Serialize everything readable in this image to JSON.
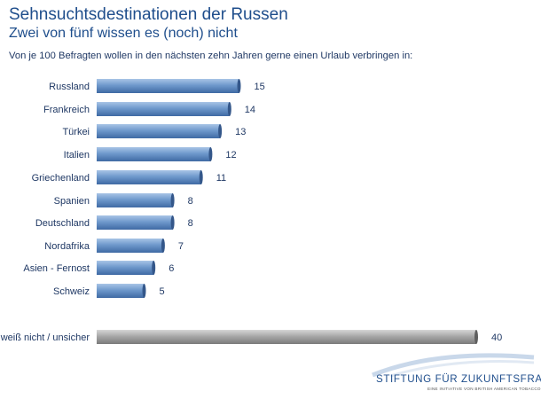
{
  "header": {
    "title": "Sehnsuchtsdestinationen der Russen",
    "subtitle": "Zwei von fünf wissen es (noch) nicht",
    "lead": "Von je 100 Befragten wollen in den nächsten zehn Jahren gerne einen Urlaub verbringen in:"
  },
  "chart_data": {
    "type": "bar",
    "orientation": "horizontal",
    "categories": [
      "Russland",
      "Frankreich",
      "Türkei",
      "Italien",
      "Griechenland",
      "Spanien",
      "Deutschland",
      "Nordafrika",
      "Asien - Fernost",
      "Schweiz",
      "weiß nicht / unsicher"
    ],
    "values": [
      15,
      14,
      13,
      12,
      11,
      8,
      8,
      7,
      6,
      5,
      40
    ],
    "xlim": [
      0,
      40
    ],
    "grid": false,
    "legend": "none",
    "colors": {
      "bar": "#6f99cc",
      "bar_other": "#a8a8a8"
    }
  },
  "logo": {
    "name": "STIFTUNG FÜR ZUKUNFTSFRAGEN",
    "tagline": "EINE INITIATIVE VON BRITISH AMERICAN TOBACCO"
  }
}
